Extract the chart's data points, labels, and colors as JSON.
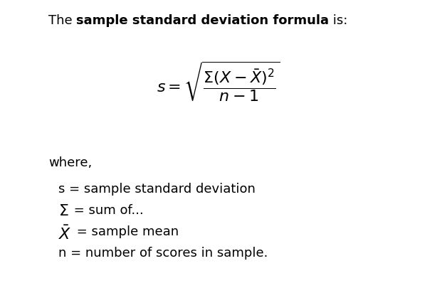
{
  "background_color": "#ffffff",
  "title_normal1": "The ",
  "title_bold": "sample standard deviation formula",
  "title_normal2": " is:",
  "title_fontsize": 13,
  "formula_fontsize": 16,
  "text_fontsize": 13,
  "def_fontsize": 13,
  "def_sym_fontsize": 14,
  "where_text": "where,",
  "definitions": [
    {
      "line": "s = sample standard deviation",
      "has_math": false,
      "math_sym": "",
      "plain_text": "s = sample standard deviation"
    },
    {
      "line": "",
      "has_math": true,
      "math_sym": "\\Sigma",
      "plain_text": " = sum of..."
    },
    {
      "line": "",
      "has_math": true,
      "math_sym": "\\bar{X}",
      "plain_text": " = sample mean"
    },
    {
      "line": "n = number of scores in sample.",
      "has_math": false,
      "math_sym": "",
      "plain_text": "n = number of scores in sample."
    }
  ]
}
